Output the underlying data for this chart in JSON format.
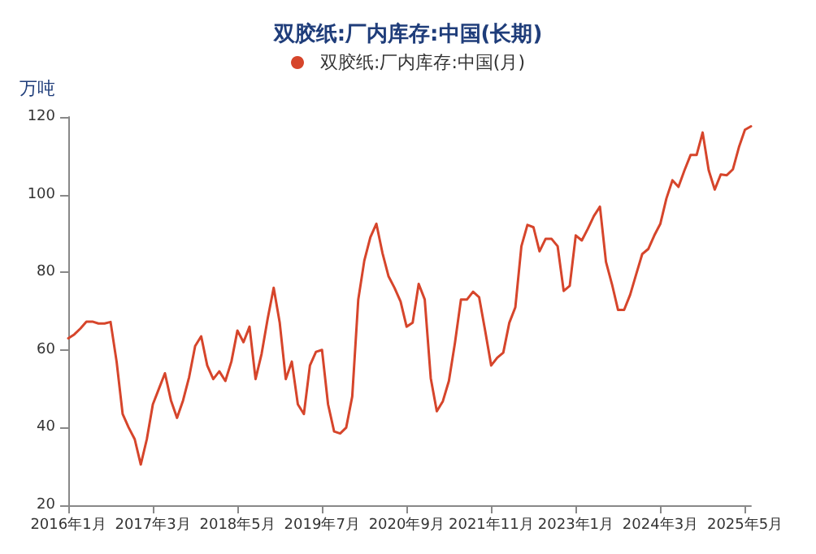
{
  "chart_data": {
    "type": "line",
    "title": "双胶纸:厂内库存:中国(长期)",
    "ylabel": "万吨",
    "categories": [
      "2016年1月",
      null,
      null,
      null,
      null,
      null,
      null,
      null,
      null,
      null,
      null,
      null,
      null,
      null,
      "2017年3月",
      null,
      null,
      null,
      null,
      null,
      null,
      null,
      null,
      null,
      null,
      null,
      null,
      null,
      "2018年5月",
      null,
      null,
      null,
      null,
      null,
      null,
      null,
      null,
      null,
      null,
      null,
      null,
      null,
      "2019年7月",
      null,
      null,
      null,
      null,
      null,
      null,
      null,
      null,
      null,
      null,
      null,
      null,
      null,
      "2020年9月",
      null,
      null,
      null,
      null,
      null,
      null,
      null,
      null,
      null,
      null,
      null,
      null,
      null,
      "2021年11月",
      null,
      null,
      null,
      null,
      null,
      null,
      null,
      null,
      null,
      null,
      null,
      null,
      null,
      "2023年1月",
      null,
      null,
      null,
      null,
      null,
      null,
      null,
      null,
      null,
      null,
      null,
      null,
      null,
      "2024年3月",
      null,
      null,
      null,
      null,
      null,
      null,
      null,
      null,
      null,
      null,
      null,
      null,
      null,
      "2025年5月",
      null
    ],
    "series": [
      {
        "name": "双胶纸:厂内库存:中国(月)",
        "color": "#d6452b",
        "values": [
          63,
          64,
          65.5,
          67.3,
          67.3,
          66.8,
          66.8,
          67.2,
          57,
          43.5,
          40,
          37,
          30.5,
          37,
          46,
          50,
          54,
          47,
          42.5,
          47,
          53,
          61,
          63.5,
          56,
          52.5,
          54.5,
          52,
          57,
          65,
          62,
          66,
          52.5,
          59,
          68,
          76,
          67,
          52.5,
          57,
          46,
          43.5,
          56,
          59.5,
          60,
          46,
          39,
          38.5,
          40,
          48,
          73,
          83,
          89,
          92.5,
          85,
          79,
          76,
          72.5,
          66,
          67,
          77,
          73,
          52.7,
          44.2,
          46.8,
          52,
          61.8,
          73,
          73,
          75,
          73.6,
          65,
          56,
          58,
          59.3,
          67,
          71,
          86.7,
          92.2,
          91.6,
          85.4,
          88.6,
          88.6,
          86.7,
          75.2,
          76.5,
          89.5,
          88.2,
          91.2,
          94.5,
          96.9,
          82.7,
          76.9,
          70.3,
          70.3,
          74.2,
          79.5,
          84.7,
          86,
          89.5,
          92.5,
          99,
          103.7,
          102,
          106.3,
          110.2,
          110.2,
          116,
          106.3,
          101.3,
          105.2,
          105,
          106.5,
          112.2,
          116.7,
          117.6
        ]
      }
    ],
    "ylim": [
      20,
      120
    ],
    "yticks": [
      20,
      40,
      60,
      80,
      100,
      120
    ],
    "grid": false,
    "legend": "top",
    "marker": "none",
    "line_style": "solid"
  }
}
